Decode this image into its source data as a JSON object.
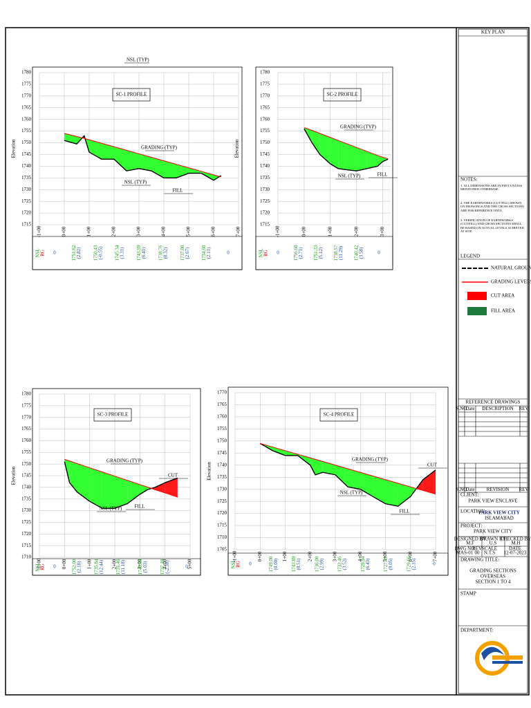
{
  "sheet_note": "NSL (TYP)",
  "profiles": [
    {
      "title": "SC-1 PROFILE",
      "axis_label": "Elevation",
      "ylim": [
        1715,
        1780
      ],
      "yticks": [
        1780,
        1775,
        1770,
        1765,
        1760,
        1755,
        1750,
        1745,
        1740,
        1735,
        1730,
        1725,
        1720,
        1715
      ],
      "xlim": [
        -1,
        7
      ],
      "xticks": [
        {
          "value": -1,
          "label": "-1+00"
        },
        {
          "value": 0,
          "label": "0+00"
        },
        {
          "value": 1,
          "label": "1+00"
        },
        {
          "value": 2,
          "label": "2+00"
        },
        {
          "value": 3,
          "label": "3+00"
        },
        {
          "value": 4,
          "label": "4+00"
        },
        {
          "value": 5,
          "label": "5+00"
        },
        {
          "value": 6,
          "label": "6+00"
        },
        {
          "value": 7,
          "label": "7+00"
        }
      ],
      "x": [
        0,
        0.5,
        0.8,
        1.0,
        1.5,
        2.0,
        2.5,
        3.0,
        3.5,
        4.0,
        4.5,
        5.0,
        5.5,
        6.0,
        6.3
      ],
      "nsl": [
        1751,
        1749.5,
        1753,
        1746,
        1743,
        1743,
        1738,
        1739,
        1738,
        1735,
        1735,
        1737,
        1737,
        1734,
        1736
      ],
      "grading": [
        1754,
        1752.7,
        1751.9,
        1751.3,
        1749.8,
        1748.3,
        1746.8,
        1745.3,
        1743.8,
        1742.3,
        1740.8,
        1739.3,
        1737.8,
        1736.3,
        1735.4
      ],
      "labels": {
        "grading": "GRADING (TYP)",
        "nsl": "NSL (TYP)",
        "fill": "FILL"
      },
      "table": {
        "row_labels": [
          "NSL",
          "RG"
        ],
        "edge": "0",
        "columns": [
          {
            "nsl": "1751.62",
            "diff": "(2.82)"
          },
          {
            "nsl": "1750.43",
            "diff": "(-0.55)"
          },
          {
            "nsl": "1745.34",
            "diff": "(3.31)"
          },
          {
            "nsl": "1743.59",
            "diff": "(6.41)"
          },
          {
            "nsl": "1738.76",
            "diff": "(8.32)"
          },
          {
            "nsl": "1737.00",
            "diff": "(2.67)"
          },
          {
            "nsl": "1734.60",
            "diff": "(2.11)"
          }
        ]
      }
    },
    {
      "title": "SC-2 PROFILE",
      "axis_label": "Elevation",
      "ylim": [
        1715,
        1780
      ],
      "yticks": [
        1780,
        1775,
        1770,
        1765,
        1760,
        1755,
        1750,
        1745,
        1740,
        1735,
        1730,
        1725,
        1720,
        1715
      ],
      "xlim": [
        -1,
        3.3
      ],
      "xticks": [
        {
          "value": -1,
          "label": "-1+00"
        },
        {
          "value": 0,
          "label": "0+00"
        },
        {
          "value": 1,
          "label": "1+00"
        },
        {
          "value": 2,
          "label": "2+00"
        },
        {
          "value": 3,
          "label": "3+00"
        }
      ],
      "x": [
        0,
        0.3,
        0.6,
        1.0,
        1.3,
        1.6,
        2.0,
        2.4,
        2.8,
        3.0,
        3.2
      ],
      "nsl": [
        1756,
        1750,
        1745,
        1741,
        1739,
        1738.5,
        1738,
        1739,
        1740,
        1742,
        1743
      ],
      "grading": [
        1756.5,
        1755.3,
        1754,
        1752.3,
        1751,
        1749.7,
        1748,
        1746.3,
        1744.6,
        1743.8,
        1743.2
      ],
      "labels": {
        "grading": "GRADING (TYP)",
        "nsl": "NSL (TYP)",
        "fill": "FILL"
      },
      "table": {
        "row_labels": [
          "NSL",
          "RG"
        ],
        "edge": "0",
        "columns": [
          {
            "nsl": "1756.60",
            "diff": "(2.71)"
          },
          {
            "nsl": "1751.33",
            "diff": "(5.12)"
          },
          {
            "nsl": "1738.57",
            "diff": "(11.29)"
          },
          {
            "nsl": "1740.42",
            "diff": "(3.58)"
          }
        ]
      }
    },
    {
      "title": "SC-3 PROFILE",
      "axis_label": "Elevation",
      "ylim": [
        1710,
        1780
      ],
      "yticks": [
        1780,
        1775,
        1770,
        1765,
        1760,
        1755,
        1750,
        1745,
        1740,
        1735,
        1730,
        1725,
        1720,
        1715,
        1710
      ],
      "xlim": [
        -1,
        5
      ],
      "xticks": [
        {
          "value": -1,
          "label": "-1+00"
        },
        {
          "value": 0,
          "label": "0+00"
        },
        {
          "value": 1,
          "label": "1+00"
        },
        {
          "value": 2,
          "label": "2+00"
        },
        {
          "value": 3,
          "label": "3+00"
        },
        {
          "value": 4,
          "label": "4+00"
        },
        {
          "value": 5,
          "label": "5+00"
        }
      ],
      "x": [
        0,
        0.2,
        0.5,
        1.0,
        1.5,
        2.0,
        2.5,
        3.0,
        3.3,
        3.6,
        4.0,
        4.5
      ],
      "nsl": [
        1751,
        1742,
        1738,
        1734,
        1731,
        1731,
        1733,
        1737,
        1739,
        1740,
        1742,
        1744
      ],
      "grading": [
        1752,
        1751.3,
        1750.2,
        1748.4,
        1746.6,
        1744.8,
        1743,
        1741.2,
        1740.1,
        1739,
        1737.6,
        1735.8
      ],
      "labels": {
        "grading": "GRADING (TYP)",
        "nsl": "NSL (TYP)",
        "fill": "FILL",
        "cut": "CUT"
      },
      "table": {
        "row_labels": [
          "NSL",
          "RG"
        ],
        "edge": "0",
        "columns": [
          {
            "nsl": "1752.00",
            "diff": "(2.18)"
          },
          {
            "nsl": "1735.84",
            "diff": "(12.44)"
          },
          {
            "nsl": "1731.46",
            "diff": "(11.18)"
          },
          {
            "nsl": "1740.53",
            "diff": "(5.03)"
          },
          {
            "nsl": "1737.10",
            "diff": "(-2.30)"
          }
        ]
      }
    },
    {
      "title": "SC-4 PROFILE",
      "axis_label": "Elevation",
      "ylim": [
        1705,
        1770
      ],
      "yticks": [
        1770,
        1765,
        1760,
        1755,
        1750,
        1745,
        1740,
        1735,
        1730,
        1725,
        1720,
        1715,
        1710,
        1705
      ],
      "xlim": [
        -1,
        7
      ],
      "xticks": [
        {
          "value": -1,
          "label": "-1+00"
        },
        {
          "value": 0,
          "label": "0+00"
        },
        {
          "value": 1,
          "label": "1+00"
        },
        {
          "value": 2,
          "label": "2+00"
        },
        {
          "value": 3,
          "label": "3+00"
        },
        {
          "value": 4,
          "label": "4+00"
        },
        {
          "value": 5,
          "label": "5+00"
        },
        {
          "value": 6,
          "label": "6+00"
        },
        {
          "value": 7,
          "label": "7+00"
        }
      ],
      "x": [
        0,
        0.5,
        1.0,
        1.5,
        2.0,
        2.2,
        2.5,
        3.0,
        3.5,
        4.0,
        4.5,
        5.0,
        5.5,
        6.0,
        6.5,
        7.0
      ],
      "nsl": [
        1749,
        1746,
        1744,
        1744,
        1740,
        1736,
        1737,
        1736,
        1731,
        1730,
        1727,
        1724,
        1723,
        1727,
        1734,
        1738
      ],
      "grading": [
        1749,
        1747.5,
        1746,
        1744.5,
        1743,
        1742.4,
        1741.5,
        1740,
        1738.5,
        1737,
        1735.5,
        1734,
        1732.5,
        1731,
        1729.5,
        1728
      ],
      "labels": {
        "grading": "GRADING (TYP)",
        "nsl": "NSL (TYP)",
        "fill": "FILL",
        "cut": "CUT"
      },
      "table": {
        "row_labels": [
          "NSL",
          "RG"
        ],
        "edge": "0",
        "columns": [
          {
            "nsl": "1749.00",
            "diff": "(0.00)"
          },
          {
            "nsl": "1743.89",
            "diff": "(0.51)"
          },
          {
            "nsl": "1736.00",
            "diff": "(2.99)"
          },
          {
            "nsl": "1732.46",
            "diff": "(3.52)"
          },
          {
            "nsl": "1729.94",
            "diff": "(6.43)"
          },
          {
            "nsl": "1727.49",
            "diff": "(9.05)"
          },
          {
            "nsl": "1729.66",
            "diff": "(2.15)"
          }
        ]
      }
    }
  ],
  "title_block": {
    "key_plan": "KEY PLAN",
    "notes_title": "NOTES:",
    "notes": [
      "1.  ALL DIMENSIONS ARE IN FEET UNLESS MENTIONED OTHERWISE.",
      "2.  THE EARTHWORKS (CUT/FILL) SHOWN ON DRAWINGS AND THE CROSS SECTIONS ARE FOR REFERENCE ONLY.",
      "3.  VERIFICATION OF EARTHWORKS (CUT/FILL) AND CROSS SECTIONS SHALL BE BASED ON ACTUAL LEVELS ACHIEVED AT SITE."
    ],
    "legend_title": "LEGEND",
    "legend": [
      "NATURAL GROUND LEVEL",
      "GRADING LEVELS",
      "CUT AREA",
      "FILL AREA"
    ],
    "reference_title": "REFERENCE DRAWINGS",
    "reference_headers": [
      "S.NO",
      "Date",
      "DESCRIPTION",
      "REV"
    ],
    "revision_headers": [
      "S.NO",
      "Date",
      "REVISION",
      "REV"
    ],
    "client_label": "CLIENT:",
    "client": "PARK VIEW ENCLAVE",
    "location_label": "LOCATION:",
    "location": "PARK VIEW CITY",
    "location_sub": "ISLAMABAD",
    "project_label": "PROJECT:",
    "project": "PARK VIEW CITY",
    "info_headers": [
      "DESIGNED BY",
      "DRAWN BY",
      "CHECKED BY"
    ],
    "info_values": [
      "M.F",
      "U.S",
      "M.H"
    ],
    "info_headers2": [
      "DWG NO",
      "REV",
      "SCALE",
      "DATE"
    ],
    "info_values2": [
      "MAS-01",
      "00",
      "N.T.S",
      "12-07-2023"
    ],
    "drawing_title_label": "DRAWING TITLE:",
    "drawing_title": [
      "GRADING SECTIONS",
      "OVERSEAS",
      "SECTION 1 TO 4"
    ],
    "stamp": "STAMP",
    "department": "DEPARTMENT:"
  }
}
